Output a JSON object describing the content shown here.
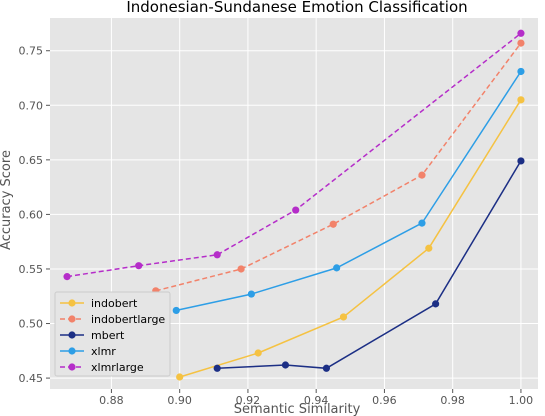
{
  "chart_data": {
    "type": "line",
    "title": "Indonesian-Sundanese Emotion Classification",
    "xlabel": "Semantic Similarity",
    "ylabel": "Accuracy Score",
    "xlim": [
      0.862,
      1.005
    ],
    "ylim": [
      0.44,
      0.78
    ],
    "xticks": [
      "0.88",
      "0.90",
      "0.92",
      "0.94",
      "0.96",
      "0.98",
      "1.00"
    ],
    "yticks": [
      "0.45",
      "0.50",
      "0.55",
      "0.60",
      "0.65",
      "0.70",
      "0.75"
    ],
    "grid": true,
    "legend_position": "lower-left",
    "series": [
      {
        "name": "indobert",
        "color": "#f5c242",
        "dash": false,
        "x": [
          0.9,
          0.923,
          0.948,
          0.973,
          1.0
        ],
        "y": [
          0.451,
          0.473,
          0.506,
          0.569,
          0.705
        ]
      },
      {
        "name": "indobertlarge",
        "color": "#f2826a",
        "dash": true,
        "x": [
          0.893,
          0.918,
          0.945,
          0.971,
          1.0
        ],
        "y": [
          0.53,
          0.55,
          0.591,
          0.636,
          0.757
        ]
      },
      {
        "name": "mbert",
        "color": "#1c2f85",
        "dash": false,
        "x": [
          0.911,
          0.931,
          0.943,
          0.975,
          1.0
        ],
        "y": [
          0.459,
          0.462,
          0.459,
          0.518,
          0.649
        ]
      },
      {
        "name": "xlmr",
        "color": "#2d9ee6",
        "dash": false,
        "x": [
          0.899,
          0.921,
          0.946,
          0.971,
          1.0
        ],
        "y": [
          0.512,
          0.527,
          0.551,
          0.592,
          0.731
        ]
      },
      {
        "name": "xlmrlarge",
        "color": "#b52dc9",
        "dash": true,
        "x": [
          0.867,
          0.888,
          0.911,
          0.934,
          1.0
        ],
        "y": [
          0.543,
          0.553,
          0.563,
          0.604,
          0.766
        ]
      }
    ]
  }
}
